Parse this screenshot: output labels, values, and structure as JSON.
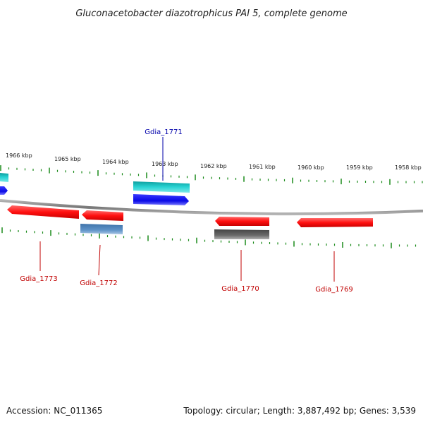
{
  "title": "Gluconacetobacter diazotrophicus PAI 5, complete genome",
  "accession": "Accession: NC_011365",
  "topology": "Topology: circular; Length: 3,887,492 bp; Genes: 3,539",
  "colors": {
    "backbone": "#8a8a8a",
    "tick": "#1a8a1a",
    "red": "#ff1a1a",
    "cyan": "#22cccc",
    "blue": "#1111ee",
    "steel": "#5b8fc4",
    "grey": "#666666",
    "label_red": "#c00000",
    "label_blue": "#0000aa"
  },
  "ticks": [
    "1966 kbp",
    "1965 kbp",
    "1964 kbp",
    "1963 kbp",
    "1962 kbp",
    "1961 kbp",
    "1960 kbp",
    "1959 kbp",
    "1958 kbp"
  ],
  "gene_labels": [
    "Gdia_1771",
    "Gdia_1773",
    "Gdia_1772",
    "Gdia_1770",
    "Gdia_1769"
  ]
}
